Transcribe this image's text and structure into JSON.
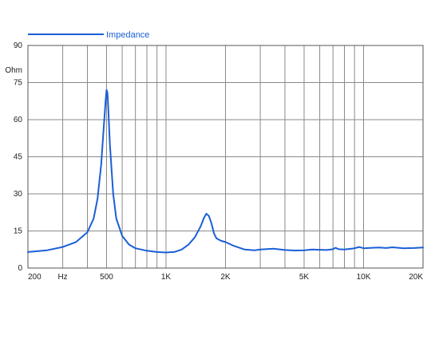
{
  "chart_data": {
    "type": "line",
    "title": "",
    "xlabel": "Hz",
    "ylabel": "Ohm",
    "x_scale": "log",
    "xlim": [
      200,
      20000
    ],
    "ylim": [
      0,
      90
    ],
    "grid": true,
    "legend_position": "top-left",
    "x_ticks": [
      {
        "value": 200,
        "label": "200"
      },
      {
        "value": 300,
        "label": "Hz"
      },
      {
        "value": 500,
        "label": "500"
      },
      {
        "value": 1000,
        "label": "1K"
      },
      {
        "value": 2000,
        "label": "2K"
      },
      {
        "value": 5000,
        "label": "5K"
      },
      {
        "value": 10000,
        "label": "10K"
      },
      {
        "value": 20000,
        "label": "20K"
      }
    ],
    "x_minor_grid": [
      300,
      400,
      500,
      600,
      700,
      800,
      900,
      1000,
      2000,
      3000,
      4000,
      5000,
      6000,
      7000,
      8000,
      9000,
      10000
    ],
    "y_ticks": [
      {
        "value": 0,
        "label": "0"
      },
      {
        "value": 15,
        "label": "15"
      },
      {
        "value": 30,
        "label": "30"
      },
      {
        "value": 45,
        "label": "45"
      },
      {
        "value": 60,
        "label": "60"
      },
      {
        "value": 75,
        "label": "75"
      },
      {
        "value": 80,
        "label": "Ohm"
      },
      {
        "value": 90,
        "label": "90"
      }
    ],
    "series": [
      {
        "name": "Impedance",
        "color": "#1a5fd6",
        "x": [
          200,
          250,
          300,
          350,
          400,
          430,
          450,
          470,
          485,
          495,
          500,
          505,
          510,
          520,
          540,
          560,
          600,
          650,
          700,
          800,
          900,
          1000,
          1100,
          1200,
          1300,
          1400,
          1500,
          1550,
          1600,
          1650,
          1700,
          1750,
          1800,
          1900,
          2000,
          2200,
          2500,
          2800,
          3000,
          3500,
          4000,
          4500,
          5000,
          5500,
          6000,
          6500,
          7000,
          7200,
          7500,
          8000,
          9000,
          9500,
          10000,
          11000,
          12000,
          13000,
          14000,
          15000,
          16000,
          18000,
          20000
        ],
        "values": [
          6.5,
          7.2,
          8.5,
          10.5,
          14.5,
          20,
          28,
          42,
          58,
          68,
          72,
          71,
          65,
          50,
          30,
          20,
          13,
          9.5,
          8,
          7,
          6.5,
          6.3,
          6.5,
          7.5,
          9.5,
          12.5,
          17,
          20,
          22,
          21,
          18,
          14,
          12,
          11,
          10.5,
          9,
          7.5,
          7.2,
          7.5,
          7.8,
          7.3,
          7.1,
          7.2,
          7.5,
          7.4,
          7.3,
          7.6,
          8.2,
          7.6,
          7.5,
          8,
          8.5,
          8,
          8.2,
          8.3,
          8.1,
          8.4,
          8.2,
          8.0,
          8.1,
          8.3
        ]
      }
    ]
  }
}
